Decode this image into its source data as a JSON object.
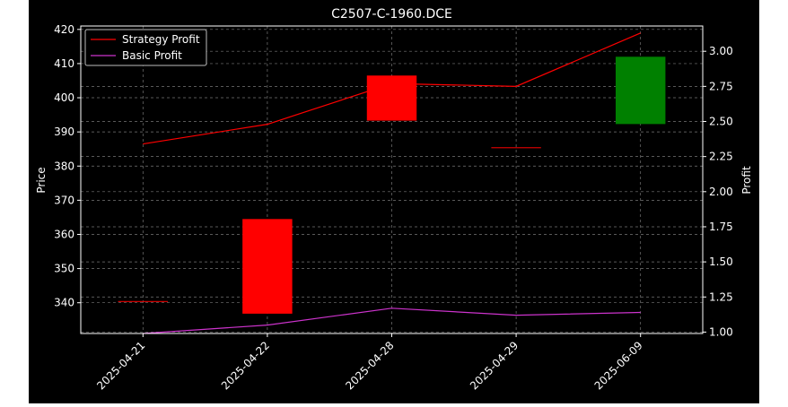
{
  "chart_data": {
    "type": "candlestick",
    "title": "C2507-C-1960.DCE",
    "ylabel_left": "Price",
    "ylabel_right": "Profit",
    "categories": [
      "2025-04-21",
      "2025-04-22",
      "2025-04-28",
      "2025-04-29",
      "2025-06-09"
    ],
    "ylim_left": [
      331,
      421
    ],
    "yticks_left": [
      340,
      350,
      360,
      370,
      380,
      390,
      400,
      410,
      420
    ],
    "ylim_right": [
      0.99,
      3.18
    ],
    "yticks_right": [
      "1.00",
      "1.25",
      "1.50",
      "1.75",
      "2.00",
      "2.25",
      "2.50",
      "2.75",
      "3.00"
    ],
    "candles": [
      {
        "date": "2025-04-21",
        "open": 340.5,
        "close": 340.5,
        "color": "#ff0000"
      },
      {
        "date": "2025-04-22",
        "open": 364.5,
        "close": 336.8,
        "color": "#ff0000"
      },
      {
        "date": "2025-04-28",
        "open": 406.5,
        "close": 393.3,
        "color": "#ff0000"
      },
      {
        "date": "2025-04-29",
        "open": 385.5,
        "close": 385.5,
        "color": "#ff0000"
      },
      {
        "date": "2025-06-09",
        "open": 392.3,
        "close": 412.0,
        "color": "#008000"
      }
    ],
    "series": [
      {
        "name": "Strategy Profit",
        "color": "#ff0000",
        "values": [
          2.34,
          2.48,
          2.77,
          2.75,
          3.13
        ]
      },
      {
        "name": "Basic Profit",
        "color": "#cc33cc",
        "values": [
          0.99,
          1.05,
          1.17,
          1.12,
          1.14
        ]
      }
    ],
    "legend": "top-left",
    "grid": true,
    "background": "#000000",
    "foreground": "#ffffff"
  }
}
